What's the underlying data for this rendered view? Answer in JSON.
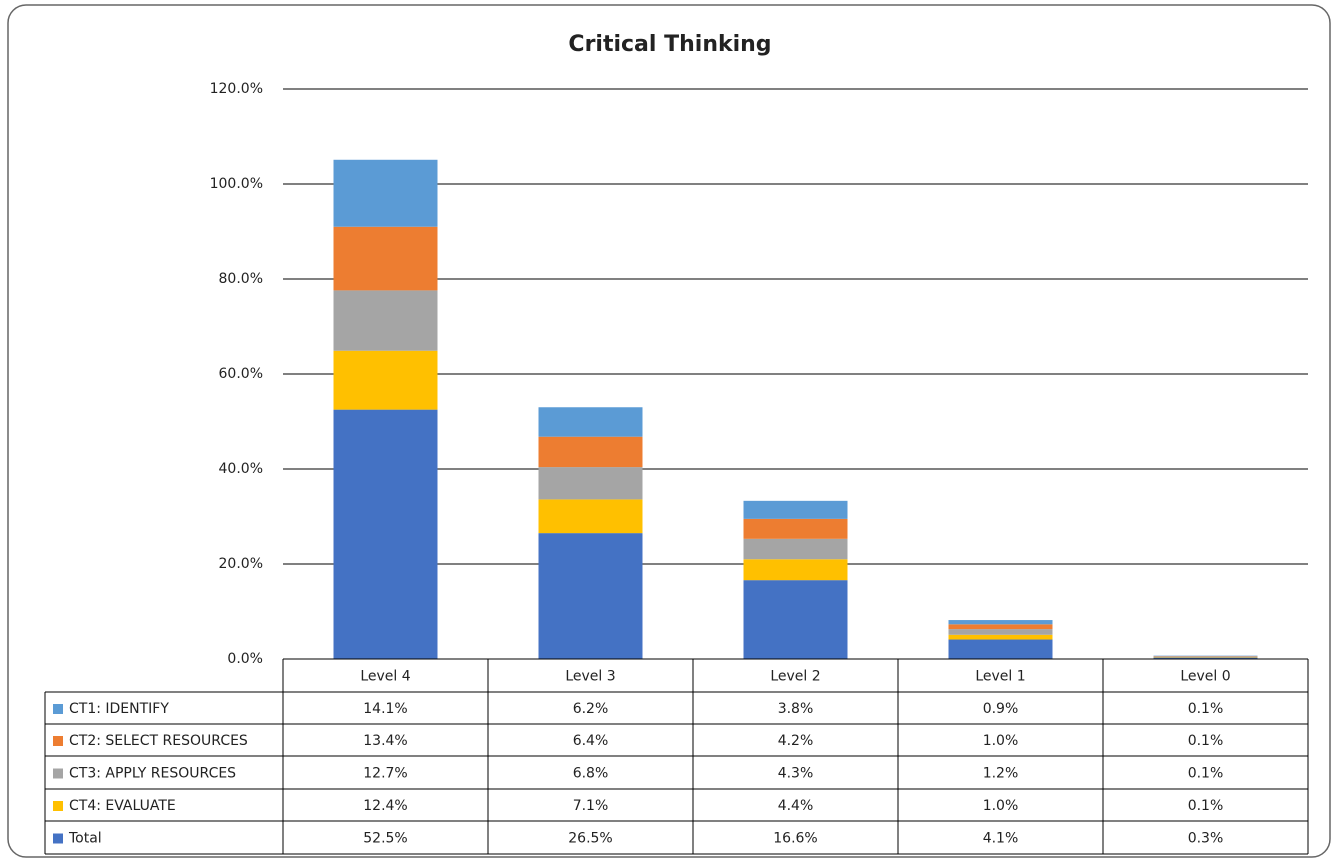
{
  "chart_data": {
    "type": "stacked_bar",
    "title": "Critical Thinking",
    "categories": [
      "Level 4",
      "Level 3",
      "Level 2",
      "Level 1",
      "Level 0"
    ],
    "series": [
      {
        "name": "CT1: IDENTIFY",
        "color": "#5b9bd5",
        "values": [
          14.1,
          6.2,
          3.8,
          0.9,
          0.1
        ],
        "value_labels": [
          "14.1%",
          "6.2%",
          "3.8%",
          "0.9%",
          "0.1%"
        ]
      },
      {
        "name": "CT2: SELECT RESOURCES",
        "color": "#ed7d31",
        "values": [
          13.4,
          6.4,
          4.2,
          1.0,
          0.1
        ],
        "value_labels": [
          "13.4%",
          "6.4%",
          "4.2%",
          "1.0%",
          "0.1%"
        ]
      },
      {
        "name": "CT3: APPLY RESOURCES",
        "color": "#a5a5a5",
        "values": [
          12.7,
          6.8,
          4.3,
          1.2,
          0.1
        ],
        "value_labels": [
          "12.7%",
          "6.8%",
          "4.3%",
          "1.2%",
          "0.1%"
        ]
      },
      {
        "name": "CT4: EVALUATE",
        "color": "#ffc000",
        "values": [
          12.4,
          7.1,
          4.4,
          1.0,
          0.1
        ],
        "value_labels": [
          "12.4%",
          "7.1%",
          "4.4%",
          "1.0%",
          "0.1%"
        ]
      },
      {
        "name": "Total",
        "color": "#4472c4",
        "values": [
          52.5,
          26.5,
          16.6,
          4.1,
          0.3
        ],
        "value_labels": [
          "52.5%",
          "26.5%",
          "16.6%",
          "4.1%",
          "0.3%"
        ]
      }
    ],
    "ylim": [
      0,
      120
    ],
    "yticks": [
      {
        "value": 0,
        "label": "0.0%"
      },
      {
        "value": 20,
        "label": "20.0%"
      },
      {
        "value": 40,
        "label": "40.0%"
      },
      {
        "value": 60,
        "label": "60.0%"
      },
      {
        "value": 80,
        "label": "80.0%"
      },
      {
        "value": 100,
        "label": "100.0%"
      },
      {
        "value": 120,
        "label": "120.0%"
      }
    ],
    "grid": true
  }
}
